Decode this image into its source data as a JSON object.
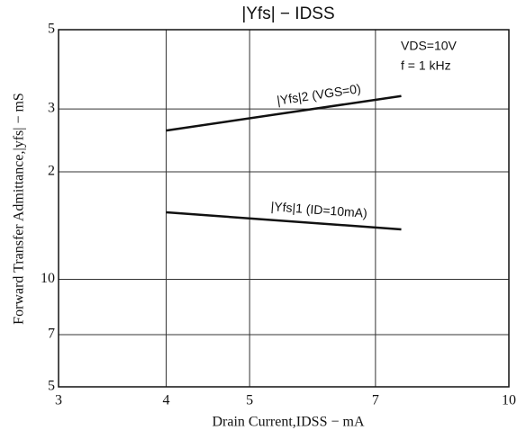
{
  "chart_data": {
    "type": "line",
    "title": "|Yfs| − IDSS",
    "x_label": "Drain Current,IDSS − mA",
    "y_label": "Forward Transfer Admittance,|yfs| − mS",
    "annotations": [
      "VDS=10V",
      "f = 1 kHz"
    ],
    "xscale": "log",
    "yscale": "log",
    "grid": true,
    "xlim": [
      3,
      10
    ],
    "xticks": [
      3,
      4,
      5,
      7,
      10
    ],
    "ylim": [
      5,
      50
    ],
    "yticks": [
      5,
      7,
      10,
      {
        "value": 20,
        "label": "2"
      },
      {
        "value": 30,
        "label": "3"
      },
      {
        "value": 50,
        "label": "5"
      }
    ],
    "series": [
      {
        "name": "|Yfs|2 (VGS=0)",
        "color": "#111111",
        "x": [
          4,
          7.5
        ],
        "values": [
          26.1,
          32.6
        ]
      },
      {
        "name": "|Yfs|1 (ID=10mA)",
        "color": "#111111",
        "x": [
          4,
          7.5
        ],
        "values": [
          15.4,
          13.8
        ]
      }
    ]
  }
}
